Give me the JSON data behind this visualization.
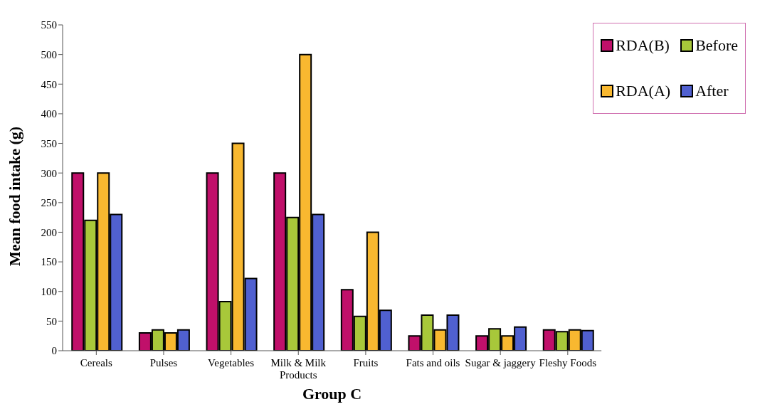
{
  "chart_data": {
    "type": "bar",
    "xlabel": "Group C",
    "ylabel": "Mean food intake (g)",
    "categories": [
      "Cereals",
      "Pulses",
      "Vegetables",
      "Milk & Milk Products",
      "Fruits",
      "Fats and oils",
      "Sugar & jaggery",
      "Fleshy Foods"
    ],
    "series": [
      {
        "name": "RDA(B)",
        "color": "#c0106a",
        "values": [
          300,
          30,
          300,
          300,
          103,
          25,
          25,
          35
        ]
      },
      {
        "name": "Before",
        "color": "#a8c83a",
        "values": [
          220,
          35,
          83,
          225,
          58,
          60,
          37,
          32
        ]
      },
      {
        "name": "RDA(A)",
        "color": "#f8b830",
        "values": [
          300,
          30,
          350,
          500,
          200,
          35,
          25,
          35
        ]
      },
      {
        "name": "After",
        "color": "#5060d0",
        "values": [
          230,
          35,
          122,
          230,
          68,
          60,
          40,
          34
        ]
      }
    ],
    "ylim": [
      0,
      550
    ],
    "yticks": [
      0,
      50,
      100,
      150,
      200,
      250,
      300,
      350,
      400,
      450,
      500,
      550
    ],
    "grid": false,
    "legend": "top right"
  }
}
